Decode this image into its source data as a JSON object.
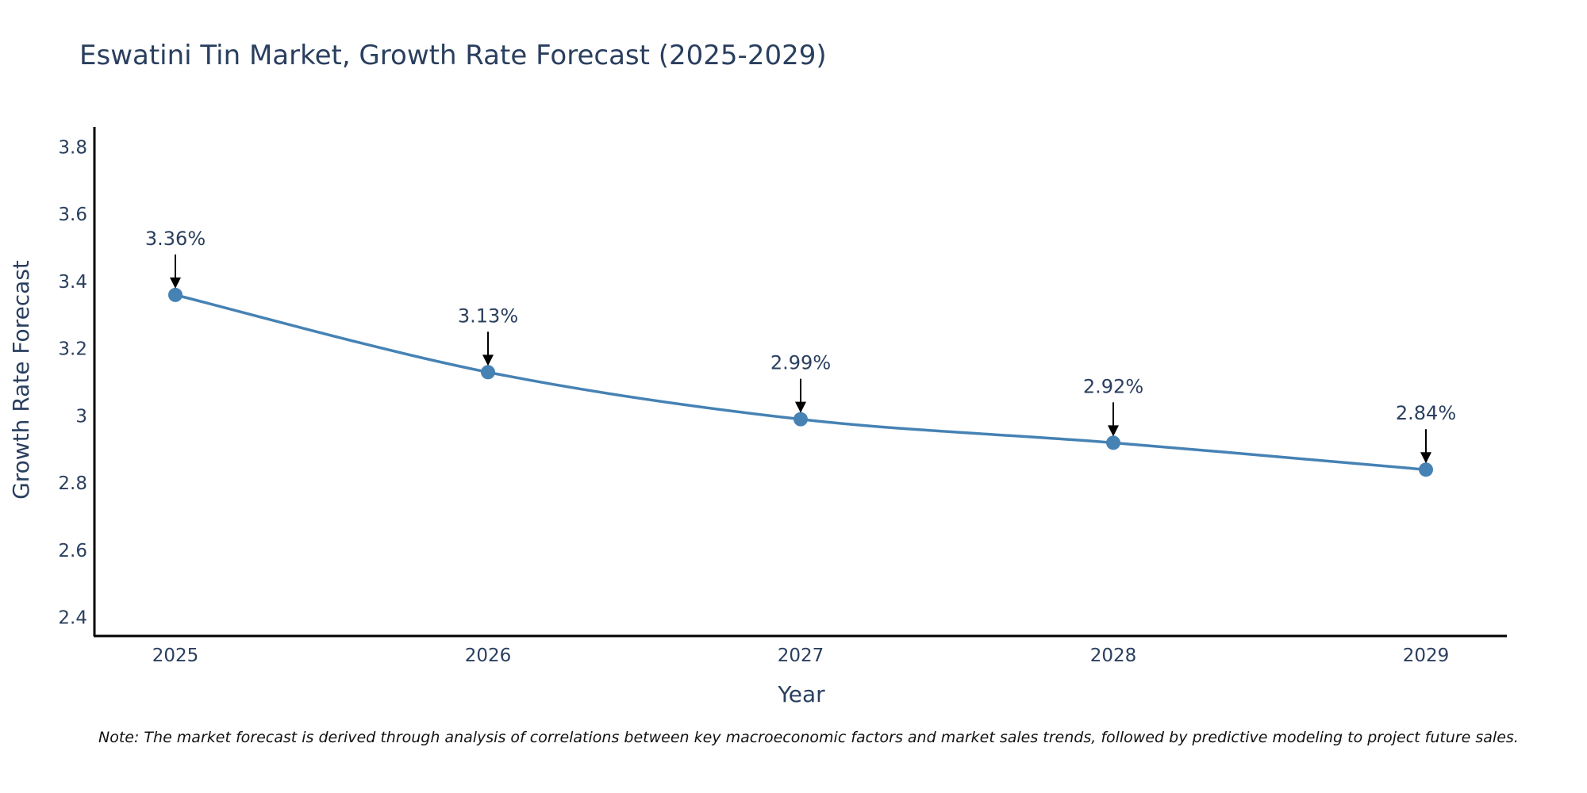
{
  "chart_data": {
    "type": "line",
    "title": "Eswatini Tin Market, Growth Rate Forecast (2025-2029)",
    "xlabel": "Year",
    "ylabel": "Growth Rate Forecast",
    "categories": [
      "2025",
      "2026",
      "2027",
      "2028",
      "2029"
    ],
    "series": [
      {
        "name": "Growth Rate Forecast",
        "values": [
          3.36,
          3.13,
          2.99,
          2.92,
          2.84
        ],
        "labels": [
          "3.36%",
          "3.13%",
          "2.99%",
          "2.92%",
          "2.84%"
        ]
      }
    ],
    "yticks": [
      "2.4",
      "2.6",
      "2.8",
      "3",
      "3.2",
      "3.4",
      "3.6",
      "3.8"
    ],
    "ytick_values": [
      2.4,
      2.6,
      2.8,
      3.0,
      3.2,
      3.4,
      3.6,
      3.8
    ],
    "ylim": [
      2.345,
      3.86
    ],
    "grid": false,
    "line_color": "#4682b4",
    "marker_color": "#4682b4",
    "arrow_color": "#000000"
  },
  "note": "Note: The market forecast is derived through analysis of correlations between key macroeconomic factors and market sales trends, followed by predictive modeling to project future sales."
}
